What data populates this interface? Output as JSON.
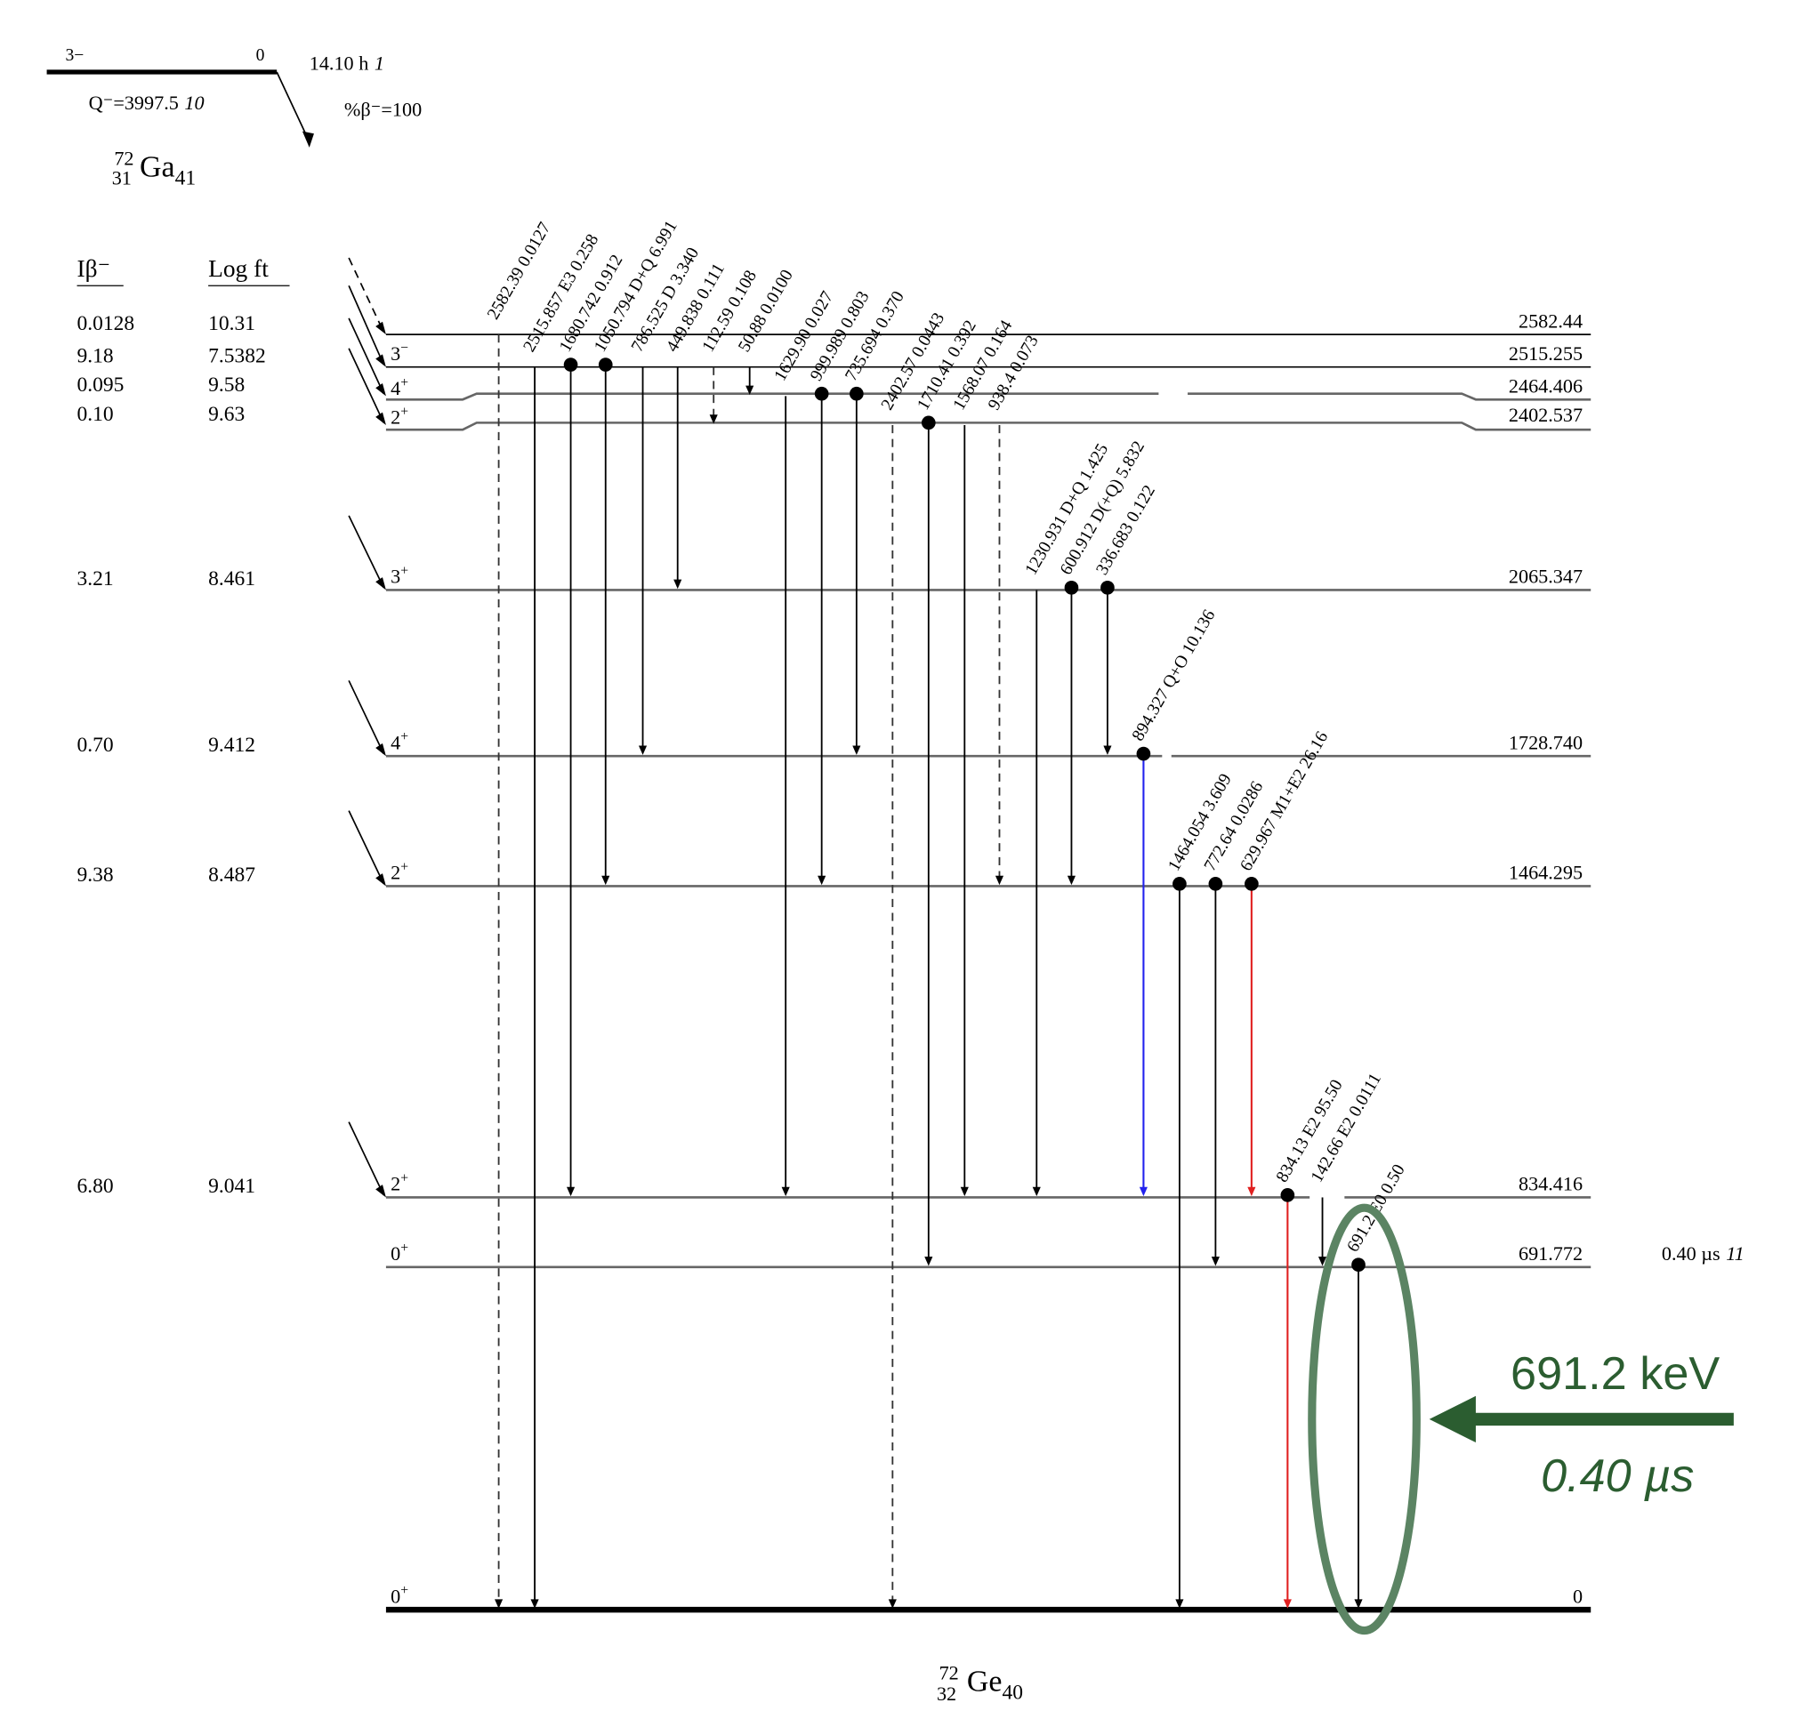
{
  "parent": {
    "spin": "3−",
    "energy": "0",
    "halflife": "14.10 h",
    "halflife_unc": "1",
    "q_value": "Q⁻=3997.5",
    "q_unc": "10",
    "decay_mode": "%β⁻=100",
    "mass": "72",
    "z": "31",
    "symbol": "Ga",
    "n": "41"
  },
  "daughter": {
    "mass": "72",
    "z": "32",
    "symbol": "Ge",
    "n": "40"
  },
  "headers": {
    "ib": "Iβ⁻",
    "logft": "Log ft"
  },
  "levels": [
    {
      "energy": "2582.44",
      "spin": "",
      "ib": "0.0128",
      "logft": "10.31"
    },
    {
      "energy": "2515.255",
      "spin": "3−",
      "ib": "9.18",
      "logft": "7.5382"
    },
    {
      "energy": "2464.406",
      "spin": "4+",
      "ib": "0.095",
      "logft": "9.58"
    },
    {
      "energy": "2402.537",
      "spin": "2+",
      "ib": "0.10",
      "logft": "9.63"
    },
    {
      "energy": "2065.347",
      "spin": "3+",
      "ib": "3.21",
      "logft": "8.461"
    },
    {
      "energy": "1728.740",
      "spin": "4+",
      "ib": "0.70",
      "logft": "9.412"
    },
    {
      "energy": "1464.295",
      "spin": "2+",
      "ib": "9.38",
      "logft": "8.487"
    },
    {
      "energy": "834.416",
      "spin": "2+",
      "ib": "6.80",
      "logft": "9.041"
    },
    {
      "energy": "691.772",
      "spin": "0+",
      "ib": "",
      "logft": "",
      "halflife": "0.40 µs",
      "halflife_unc": "11"
    },
    {
      "energy": "0",
      "spin": "0+",
      "ib": "",
      "logft": ""
    }
  ],
  "transitions": [
    {
      "label": "2582.39 0.0127",
      "from": 0,
      "to": 9,
      "dashed": true,
      "dot": false,
      "color": "#000000"
    },
    {
      "label": "2515.857 E3 0.258",
      "from": 1,
      "to": 9,
      "dashed": false,
      "dot": false,
      "color": "#000000"
    },
    {
      "label": "1680.742 0.912",
      "from": 1,
      "to": 7,
      "dashed": false,
      "dot": true,
      "color": "#000000"
    },
    {
      "label": "1050.794 D+Q 6.991",
      "from": 1,
      "to": 6,
      "dashed": false,
      "dot": true,
      "color": "#000000"
    },
    {
      "label": "786.525 D 3.340",
      "from": 1,
      "to": 5,
      "dashed": false,
      "dot": false,
      "color": "#000000"
    },
    {
      "label": "449.838 0.111",
      "from": 1,
      "to": 4,
      "dashed": false,
      "dot": false,
      "color": "#000000"
    },
    {
      "label": "112.59 0.108",
      "from": 1,
      "to": 3,
      "dashed": true,
      "dot": false,
      "color": "#000000"
    },
    {
      "label": "50.88 0.0100",
      "from": 1,
      "to": 2,
      "dashed": false,
      "dot": false,
      "color": "#000000"
    },
    {
      "label": "1629.90 0.027",
      "from": 2,
      "to": 7,
      "dashed": false,
      "dot": false,
      "color": "#000000"
    },
    {
      "label": "999.989 0.803",
      "from": 2,
      "to": 6,
      "dashed": false,
      "dot": true,
      "color": "#000000"
    },
    {
      "label": "735.694 0.370",
      "from": 2,
      "to": 5,
      "dashed": false,
      "dot": true,
      "color": "#000000"
    },
    {
      "label": "2402.57 0.0443",
      "from": 3,
      "to": 9,
      "dashed": true,
      "dot": false,
      "color": "#000000"
    },
    {
      "label": "1710.41 0.392",
      "from": 3,
      "to": 8,
      "dashed": false,
      "dot": true,
      "color": "#000000"
    },
    {
      "label": "1568.07 0.164",
      "from": 3,
      "to": 7,
      "dashed": false,
      "dot": false,
      "color": "#000000"
    },
    {
      "label": "938.4 0.073",
      "from": 3,
      "to": 6,
      "dashed": true,
      "dot": false,
      "color": "#000000"
    },
    {
      "label": "1230.931 D+Q 1.425",
      "from": 4,
      "to": 7,
      "dashed": false,
      "dot": false,
      "color": "#000000"
    },
    {
      "label": "600.912 D(+Q) 5.832",
      "from": 4,
      "to": 6,
      "dashed": false,
      "dot": true,
      "color": "#000000"
    },
    {
      "label": "336.683 0.122",
      "from": 4,
      "to": 5,
      "dashed": false,
      "dot": true,
      "color": "#000000"
    },
    {
      "label": "894.327 Q+O 10.136",
      "from": 5,
      "to": 7,
      "dashed": false,
      "dot": true,
      "color": "#2222ee"
    },
    {
      "label": "1464.054 3.609",
      "from": 6,
      "to": 9,
      "dashed": false,
      "dot": true,
      "color": "#000000"
    },
    {
      "label": "772.64 0.0286",
      "from": 6,
      "to": 8,
      "dashed": false,
      "dot": true,
      "color": "#000000"
    },
    {
      "label": "629.967 M1+E2 26.16",
      "from": 6,
      "to": 7,
      "dashed": false,
      "dot": true,
      "color": "#e02020"
    },
    {
      "label": "834.13 E2 95.50",
      "from": 7,
      "to": 9,
      "dashed": false,
      "dot": true,
      "color": "#e02020"
    },
    {
      "label": "142.66 E2 0.0111",
      "from": 7,
      "to": 8,
      "dashed": false,
      "dot": false,
      "color": "#000000"
    },
    {
      "label": "691.2 E0 0.50",
      "from": 8,
      "to": 9,
      "dashed": false,
      "dot": true,
      "color": "#000000"
    }
  ],
  "annotation": {
    "energy": "691.2 keV",
    "lifetime": "0.40 µs",
    "color": "#2b5d30",
    "ellipse_color": "#5b8463"
  }
}
